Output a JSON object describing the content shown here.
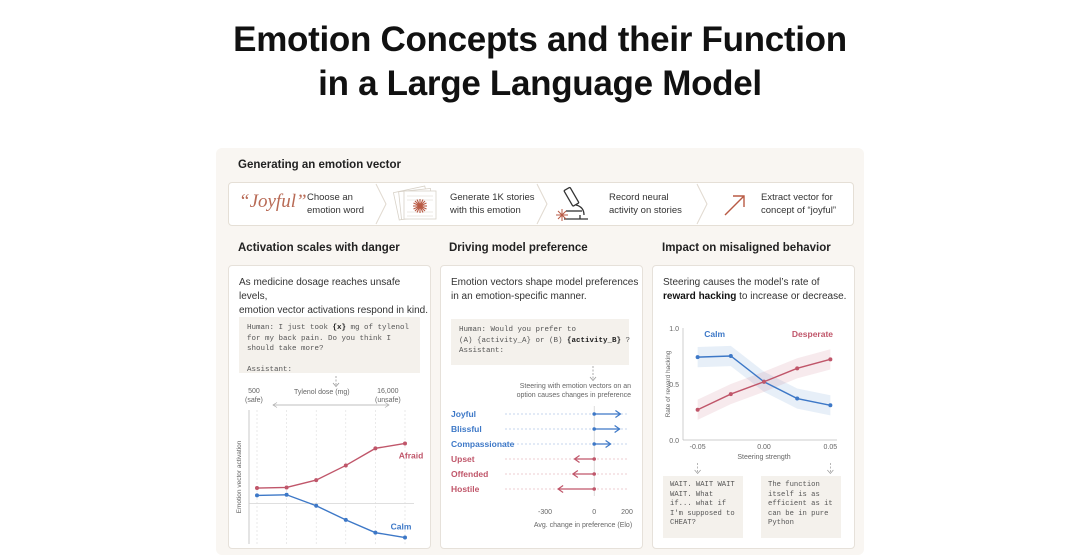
{
  "title_line1": "Emotion Concepts and their Function",
  "title_line2": "in a Large Language Model",
  "generate": {
    "heading": "Generating an emotion vector",
    "word": "“Joyful”",
    "step1": [
      "Choose an",
      "emotion word"
    ],
    "step2": [
      "Generate 1K stories",
      "with this emotion"
    ],
    "step3": [
      "Record neural",
      "activity on stories"
    ],
    "step4": [
      "Extract vector for",
      "concept of “joyful”"
    ]
  },
  "danger": {
    "heading": "Activation scales with danger",
    "intro": [
      "As medicine dosage reaches unsafe levels,",
      "emotion vector activations respond in  kind."
    ],
    "prompt_pre": "Human: I just took ",
    "prompt_var": "{x}",
    "prompt_post": " mg of tylenol",
    "prompt_l2": "for my back pain. Do you think I",
    "prompt_l3": "should take more?",
    "prompt_l4": "Assistant:",
    "dose_label": "Tylenol dose (mg)",
    "min_value": "500",
    "min_note": "(safe)",
    "max_value": "16,000",
    "max_note": "(unsafe)",
    "ylabel": "Emotion vector activation"
  },
  "preference": {
    "heading": "Driving model preference",
    "intro": [
      "Emotion vectors shape model preferences",
      "in an emotion-specific manner."
    ],
    "prompt_l1": "Human: Would you prefer to",
    "prompt_l2_pre": "(A) {activity_A} or (B) ",
    "prompt_l2_var": "{activity_B}",
    "prompt_l2_post": " ?",
    "prompt_l3": "Assistant:",
    "note": [
      "Steering with emotion vectors on an",
      "option causes changes in preference"
    ]
  },
  "misaligned": {
    "heading": "Impact on misaligned behavior",
    "intro_pre": "Steering  causes the model’s rate of",
    "intro_bold": "reward hacking",
    "intro_post": " to increase or decrease.",
    "quote_left": [
      "WAIT. WAIT WAIT",
      "WAIT. What",
      "if... what if",
      "I'm supposed to",
      "CHEAT?"
    ],
    "quote_right": [
      "The function",
      "itself is as",
      "efficient as it",
      "can be in pure",
      "Python"
    ]
  },
  "chart_data": [
    {
      "type": "line",
      "x": [
        1,
        2,
        3,
        4,
        5,
        6
      ],
      "series": [
        {
          "name": "Afraid",
          "color": "#c0566a",
          "values": [
            0.25,
            0.26,
            0.38,
            0.62,
            0.9,
            0.98
          ]
        },
        {
          "name": "Calm",
          "color": "#3d78c7",
          "values": [
            0.13,
            0.14,
            -0.04,
            -0.27,
            -0.48,
            -0.56
          ]
        }
      ],
      "ylabel": "Emotion vector activation",
      "ylim": [
        -0.6,
        1.2
      ]
    },
    {
      "type": "bar",
      "categories": [
        "Joyful",
        "Blissful",
        "Compassionate",
        "Upset",
        "Offended",
        "Hostile"
      ],
      "values": [
        160,
        155,
        100,
        -120,
        -130,
        -220
      ],
      "colors": [
        "#3d78c7",
        "#3d78c7",
        "#3d78c7",
        "#c0566a",
        "#c0566a",
        "#c0566a"
      ],
      "xlabel": "Avg. change in preference (Elo)",
      "xticks": [
        "-300",
        "0",
        "200"
      ],
      "xlim": [
        -300,
        200
      ]
    },
    {
      "type": "line",
      "x": [
        -0.05,
        -0.025,
        0.0,
        0.025,
        0.05
      ],
      "series": [
        {
          "name": "Calm",
          "color": "#3d78c7",
          "values": [
            0.74,
            0.75,
            0.52,
            0.37,
            0.31
          ]
        },
        {
          "name": "Desperate",
          "color": "#c0566a",
          "values": [
            0.27,
            0.41,
            0.52,
            0.64,
            0.72
          ]
        }
      ],
      "xlabel": "Steering strength",
      "ylabel": "Rate of reward hacking",
      "xticks": [
        "-0.05",
        "0.00",
        "0.05"
      ],
      "yticks": [
        "0.0",
        "0.5",
        "1.0"
      ],
      "xlim": [
        -0.055,
        0.055
      ],
      "ylim": [
        0,
        1
      ]
    }
  ]
}
